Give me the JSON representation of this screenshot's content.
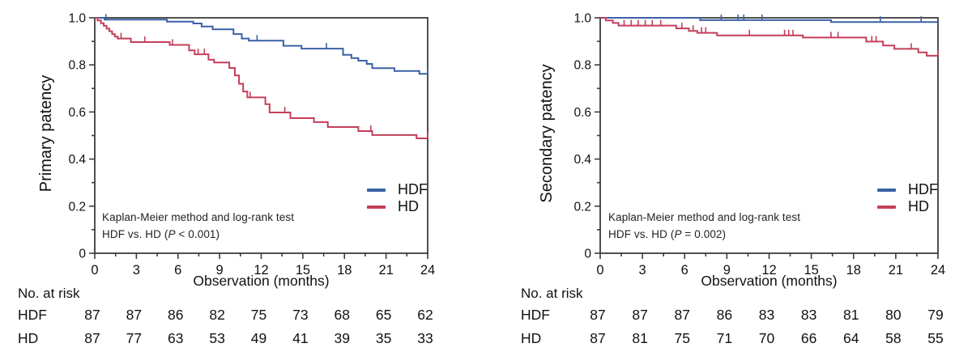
{
  "chart_data": [
    {
      "type": "line",
      "subtype": "kaplan-meier-step",
      "ylabel": "Primary patency",
      "xlabel": "Observation (months)",
      "xlim": [
        0,
        24
      ],
      "ylim": [
        0,
        1.0
      ],
      "x_ticks": [
        0,
        3,
        6,
        9,
        12,
        15,
        18,
        21,
        24
      ],
      "y_ticks": [
        {
          "label": "0",
          "v": 0
        },
        {
          "label": "0.2",
          "v": 0.2
        },
        {
          "label": "0.4",
          "v": 0.4
        },
        {
          "label": "0.6",
          "v": 0.6
        },
        {
          "label": "0.8",
          "v": 0.8
        },
        {
          "label": "1.0",
          "v": 1.0
        }
      ],
      "grid": false,
      "legend_position": "inside-lower-right",
      "annotation": {
        "line1": "Kaplan-Meier method and log-rank test",
        "line2_pre": "HDF vs. HD (",
        "line2_italic": "P",
        "line2_post": " < 0.001)"
      },
      "series": [
        {
          "name": "HDF",
          "color": "#3a61a6",
          "points": [
            [
              0,
              1.0
            ],
            [
              0.7,
              0.992
            ],
            [
              5.2,
              0.984
            ],
            [
              7.1,
              0.976
            ],
            [
              7.7,
              0.963
            ],
            [
              8.5,
              0.951
            ],
            [
              10.0,
              0.931
            ],
            [
              10.6,
              0.912
            ],
            [
              11.1,
              0.903
            ],
            [
              13.6,
              0.881
            ],
            [
              14.9,
              0.869
            ],
            [
              17.9,
              0.843
            ],
            [
              18.5,
              0.829
            ],
            [
              19.0,
              0.818
            ],
            [
              19.6,
              0.804
            ],
            [
              20.0,
              0.786
            ],
            [
              21.6,
              0.774
            ],
            [
              23.4,
              0.762
            ]
          ],
          "censor_months": [
            0.8,
            11.7,
            16.7,
            24
          ]
        },
        {
          "name": "HD",
          "color": "#c43f59",
          "points": [
            [
              0,
              1.0
            ],
            [
              0.2,
              0.989
            ],
            [
              0.45,
              0.977
            ],
            [
              0.65,
              0.966
            ],
            [
              0.85,
              0.954
            ],
            [
              1.05,
              0.943
            ],
            [
              1.25,
              0.931
            ],
            [
              1.45,
              0.92
            ],
            [
              1.65,
              0.912
            ],
            [
              2.6,
              0.897
            ],
            [
              5.4,
              0.885
            ],
            [
              6.8,
              0.862
            ],
            [
              7.2,
              0.845
            ],
            [
              8.2,
              0.822
            ],
            [
              8.6,
              0.81
            ],
            [
              9.7,
              0.787
            ],
            [
              10.1,
              0.755
            ],
            [
              10.4,
              0.72
            ],
            [
              10.7,
              0.687
            ],
            [
              11.0,
              0.662
            ],
            [
              12.3,
              0.633
            ],
            [
              12.6,
              0.598
            ],
            [
              14.1,
              0.574
            ],
            [
              15.8,
              0.557
            ],
            [
              16.8,
              0.536
            ],
            [
              19.0,
              0.519
            ],
            [
              20.0,
              0.502
            ],
            [
              23.2,
              0.488
            ]
          ],
          "censor_months": [
            1.9,
            3.6,
            5.6,
            7.45,
            7.9,
            11.2,
            13.7,
            19.9,
            24
          ]
        }
      ],
      "risk_table": {
        "title": "No. at risk",
        "time_points": [
          0,
          3,
          6,
          9,
          12,
          15,
          18,
          21,
          24
        ],
        "rows": [
          {
            "label": "HDF",
            "values": [
              87,
              87,
              86,
              82,
              75,
              73,
              68,
              65,
              62
            ]
          },
          {
            "label": "HD",
            "values": [
              87,
              77,
              63,
              53,
              49,
              41,
              39,
              35,
              33
            ]
          }
        ]
      }
    },
    {
      "type": "line",
      "subtype": "kaplan-meier-step",
      "ylabel": "Secondary patency",
      "xlabel": "Observation (months)",
      "xlim": [
        0,
        24
      ],
      "ylim": [
        0,
        1.0
      ],
      "x_ticks": [
        0,
        3,
        6,
        9,
        12,
        15,
        18,
        21,
        24
      ],
      "y_ticks": [
        {
          "label": "0",
          "v": 0
        },
        {
          "label": "0.2",
          "v": 0.2
        },
        {
          "label": "0.4",
          "v": 0.4
        },
        {
          "label": "0.6",
          "v": 0.6
        },
        {
          "label": "0.8",
          "v": 0.8
        },
        {
          "label": "1.0",
          "v": 1.0
        }
      ],
      "grid": false,
      "legend_position": "inside-lower-right",
      "annotation": {
        "line1": "Kaplan-Meier method and log-rank test",
        "line2_pre": "HDF vs. HD (",
        "line2_italic": "P",
        "line2_post": " = 0.002)"
      },
      "series": [
        {
          "name": "HDF",
          "color": "#3a61a6",
          "points": [
            [
              0,
              1.0
            ],
            [
              7.1,
              0.99
            ],
            [
              16.4,
              0.982
            ]
          ],
          "censor_months": [
            8.6,
            9.8,
            10.2,
            11.5,
            19.9,
            22.8
          ]
        },
        {
          "name": "HD",
          "color": "#c43f59",
          "points": [
            [
              0,
              1.0
            ],
            [
              0.4,
              0.989
            ],
            [
              0.9,
              0.978
            ],
            [
              1.3,
              0.967
            ],
            [
              5.4,
              0.955
            ],
            [
              6.3,
              0.944
            ],
            [
              6.9,
              0.936
            ],
            [
              8.3,
              0.925
            ],
            [
              14.4,
              0.916
            ],
            [
              18.9,
              0.899
            ],
            [
              20.1,
              0.882
            ],
            [
              20.9,
              0.868
            ],
            [
              22.6,
              0.853
            ],
            [
              23.2,
              0.839
            ]
          ],
          "censor_months": [
            1.7,
            2.2,
            2.7,
            3.2,
            3.7,
            4.3,
            5.8,
            6.6,
            7.2,
            7.5,
            10.6,
            13.1,
            13.4,
            13.7,
            16.4,
            16.9,
            19.3,
            19.6,
            22.1,
            24
          ]
        }
      ],
      "risk_table": {
        "title": "No. at risk",
        "time_points": [
          0,
          3,
          6,
          9,
          12,
          15,
          18,
          21,
          24
        ],
        "rows": [
          {
            "label": "HDF",
            "values": [
              87,
              87,
              87,
              86,
              83,
              83,
              81,
              80,
              79
            ]
          },
          {
            "label": "HD",
            "values": [
              87,
              81,
              75,
              71,
              70,
              66,
              64,
              58,
              55
            ]
          }
        ]
      }
    }
  ]
}
